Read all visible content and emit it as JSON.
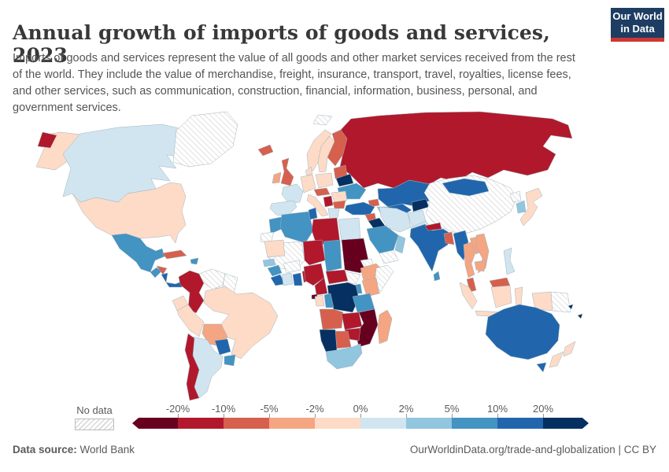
{
  "header": {
    "title": "Annual growth of imports of goods and services, 2023",
    "subtitle": "Imports of goods and services represent the value of all goods and other market services received from the rest of the world. They include the value of merchandise, freight, insurance, transport, travel, royalties, license fees, and other services, such as communication, construction, financial, information, business, personal, and government services.",
    "logo_line1": "Our World",
    "logo_line2": "in Data",
    "logo_bg": "#1d3d63",
    "logo_accent": "#cc3732"
  },
  "legend": {
    "no_data_label": "No data",
    "tick_labels": [
      "-20%",
      "-10%",
      "-5%",
      "-2%",
      "0%",
      "2%",
      "5%",
      "10%",
      "20%"
    ]
  },
  "footer": {
    "source_label": "Data source:",
    "source_value": " World Bank",
    "credit": "OurWorldinData.org/trade-and-globalization | CC BY"
  },
  "chart_data": {
    "type": "heatmap",
    "subtype": "choropleth-world-map",
    "title": "Annual growth of imports of goods and services, 2023",
    "unit": "%",
    "legend_position": "bottom",
    "legend_bins": [
      {
        "range": "<-20%",
        "color": "#67001f"
      },
      {
        "range": "-20% to -10%",
        "color": "#b2182b"
      },
      {
        "range": "-10% to -5%",
        "color": "#d6604d"
      },
      {
        "range": "-5% to -2%",
        "color": "#f4a582"
      },
      {
        "range": "-2% to 0%",
        "color": "#fddbc7"
      },
      {
        "range": "0% to 2%",
        "color": "#d1e5f0"
      },
      {
        "range": "2% to 5%",
        "color": "#92c5de"
      },
      {
        "range": "5% to 10%",
        "color": "#4393c3"
      },
      {
        "range": "10% to 20%",
        "color": "#2166ac"
      },
      {
        "range": ">20%",
        "color": "#053061"
      }
    ],
    "no_data": {
      "label": "No data",
      "fill": "hatch"
    },
    "countries": {
      "Canada": "0% to 2%",
      "United States": "-2% to 0%",
      "Alaska (US)": "-2% to 0%",
      "Greenland": "No data",
      "Mexico": "5% to 10%",
      "Guatemala": "5% to 10%",
      "Honduras": "-10% to -5%",
      "Nicaragua": "10% to 20%",
      "Panama": "10% to 20%",
      "Cuba": "-10% to -5%",
      "Dominican Republic": "5% to 10%",
      "Colombia": "-20% to -10%",
      "Venezuela": "No data",
      "Guyana and Suriname": "No data",
      "Ecuador": "-2% to 0%",
      "Peru": "-2% to 0%",
      "Brazil": "-2% to 0%",
      "Bolivia": "-5% to -2%",
      "Paraguay": "10% to 20%",
      "Uruguay": "5% to 10%",
      "Argentina": "0% to 2%",
      "Chile": "-20% to -10%",
      "Iceland": "-10% to -5%",
      "United Kingdom": "-10% to -5%",
      "Ireland": "-5% to -2%",
      "Norway": "-2% to 0%",
      "Sweden": "-2% to 0%",
      "Finland": "-10% to -5%",
      "Denmark": "-2% to 0%",
      "Germany": "-2% to 0%",
      "Poland": "-2% to 0%",
      "Baltic states": "-10% to -5%",
      "Belarus": ">20%",
      "Ukraine": "5% to 10%",
      "France": "0% to 2%",
      "Spain": "0% to 2%",
      "Italy": "-2% to 0%",
      "Hungary": "-10% to -5%",
      "Romania": "-2% to 0%",
      "Serbia": "-20% to -10%",
      "Bulgaria": "-10% to -5%",
      "Greece": "0% to 2%",
      "Russia": "-20% to -10%",
      "Kazakhstan": "10% to 20%",
      "Uzbekistan": "10% to 20%",
      "Turkmenistan": "2% to 5%",
      "Kyrgyzstan": ">20%",
      "Georgia": "-10% to -5%",
      "Turkey": "10% to 20%",
      "Syria": "-10% to -5%",
      "Iraq": ">20%",
      "Saudi Arabia": "5% to 10%",
      "Yemen": "No data",
      "Oman": "2% to 5%",
      "Iran": "0% to 2%",
      "Afghanistan": "0% to 2%",
      "Pakistan": "0% to 2%",
      "Morocco": "5% to 10%",
      "Western Sahara": "No data",
      "Algeria": "5% to 10%",
      "Tunisia": "10% to 20%",
      "Libya": "-20% to -10%",
      "Egypt": "0% to 2%",
      "Mauritania": "-2% to 0%",
      "Mali": "No data",
      "Niger": "-20% to -10%",
      "Chad": "5% to 10%",
      "Sudan": "<-20%",
      "South Sudan": "No data",
      "Eritrea": "No data",
      "Ethiopia": "-5% to -2%",
      "Somalia": "No data",
      "Senegal": "2% to 5%",
      "Guinea": "5% to 10%",
      "Sierra Leone and Liberia": "10% to 20%",
      "Cote d'Ivoire": "0% to 2%",
      "Ghana": "10% to 20%",
      "Burkina Faso": "No data",
      "Benin": "-20% to -10%",
      "Nigeria": "-20% to -10%",
      "Cameroon": "-20% to -10%",
      "Equatorial Guinea": "<-20%",
      "Central African Republic": "-20% to -10%",
      "Uganda": "5% to 10%",
      "Kenya": "-5% to -2%",
      "DR Congo": ">20%",
      "Gabon": "-2% to 0%",
      "Congo": "5% to 10%",
      "Tanzania": "5% to 10%",
      "Angola": "-10% to -5%",
      "Zambia": "-20% to -10%",
      "Mozambique": "<-20%",
      "Zimbabwe": "-20% to -10%",
      "Botswana": "-10% to -5%",
      "Namibia": ">20%",
      "South Africa": "2% to 5%",
      "Madagascar": "-5% to -2%",
      "China": "No data",
      "Mongolia": "10% to 20%",
      "India": "10% to 20%",
      "Nepal": "-20% to -10%",
      "Bangladesh": "-10% to -5%",
      "Sri Lanka": "5% to 10%",
      "Myanmar": "10% to 20%",
      "Thailand": "-5% to -2%",
      "Laos": "-5% to -2%",
      "Vietnam": "-5% to -2%",
      "Cambodia": "-5% to -2%",
      "Malaysia": "-10% to -5%",
      "Indonesia": "-2% to 0%",
      "Papua New Guinea": "No data",
      "Philippines": "0% to 2%",
      "North Korea": "No data",
      "South Korea": "2% to 5%",
      "Japan": "-2% to 0%",
      "Svalbard": "No data",
      "Australia": "10% to 20%",
      "New Zealand": "-2% to 0%",
      "Solomon Islands": ">20%"
    }
  }
}
